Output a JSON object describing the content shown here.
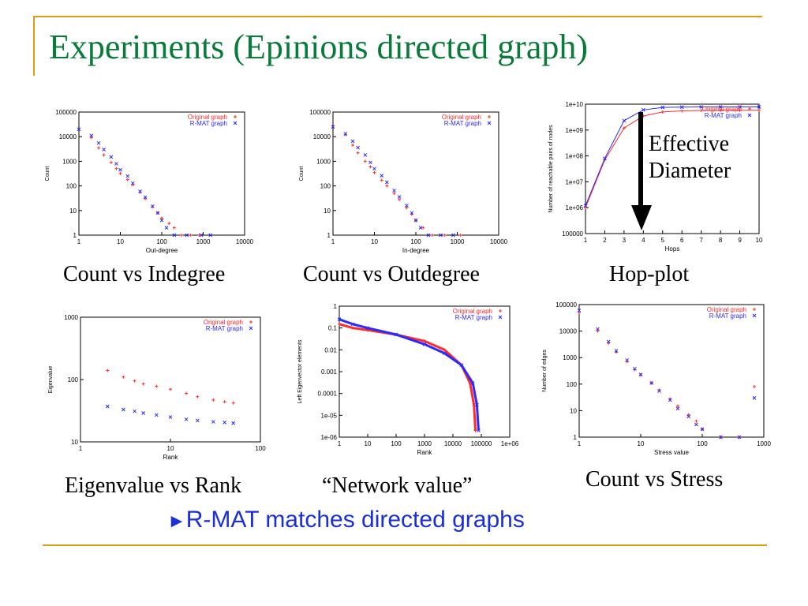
{
  "slide": {
    "title": "Experiments (Epinions directed graph)",
    "tagline_arrow": "►",
    "tagline": "R-MAT matches directed graphs",
    "annotation_line1": "Effective",
    "annotation_line2": "Diameter",
    "colors": {
      "title": "#0a7a3a",
      "accent": "#d4a017",
      "tagline": "#1a2fd6",
      "original": "#ff2a2a",
      "rmat": "#2a2aff"
    }
  },
  "chart_data": [
    {
      "id": "p1",
      "type": "scatter",
      "caption": "Count vs Indegree",
      "xlabel": "Out-degree",
      "ylabel": "Count",
      "xscale": "log",
      "yscale": "log",
      "xlim": [
        1,
        10000
      ],
      "ylim": [
        1,
        100000
      ],
      "xticks": [
        "1",
        "10",
        "100",
        "1000",
        "10000"
      ],
      "yticks": [
        "1",
        "10",
        "100",
        "1000",
        "10000",
        "100000"
      ],
      "legend_position": "top-right",
      "series": [
        {
          "name": "Original graph",
          "points": [
            [
              2,
              9000
            ],
            [
              3,
              3500
            ],
            [
              4,
              1800
            ],
            [
              6,
              900
            ],
            [
              8,
              500
            ],
            [
              10,
              320
            ],
            [
              15,
              180
            ],
            [
              20,
              110
            ],
            [
              30,
              55
            ],
            [
              40,
              30
            ],
            [
              60,
              14
            ],
            [
              80,
              8
            ],
            [
              100,
              5
            ],
            [
              150,
              3
            ],
            [
              200,
              2
            ],
            [
              300,
              1
            ],
            [
              500,
              1
            ],
            [
              800,
              1
            ]
          ]
        },
        {
          "name": "R-MAT graph",
          "points": [
            [
              1,
              20000
            ],
            [
              2,
              11000
            ],
            [
              3,
              5500
            ],
            [
              4,
              3000
            ],
            [
              6,
              1500
            ],
            [
              8,
              800
            ],
            [
              10,
              450
            ],
            [
              15,
              250
            ],
            [
              20,
              130
            ],
            [
              30,
              60
            ],
            [
              40,
              35
            ],
            [
              60,
              15
            ],
            [
              80,
              8
            ],
            [
              100,
              4
            ],
            [
              130,
              2
            ],
            [
              200,
              1
            ],
            [
              400,
              1
            ],
            [
              900,
              1
            ],
            [
              1500,
              1
            ]
          ]
        }
      ]
    },
    {
      "id": "p2",
      "type": "scatter",
      "caption": "Count vs Outdegree",
      "xlabel": "In-degree",
      "ylabel": "Count",
      "xscale": "log",
      "yscale": "log",
      "xlim": [
        1,
        10000
      ],
      "ylim": [
        1,
        100000
      ],
      "xticks": [
        "1",
        "10",
        "100",
        "1000",
        "10000"
      ],
      "yticks": [
        "1",
        "10",
        "100",
        "1000",
        "10000",
        "100000"
      ],
      "legend_position": "top-right",
      "series": [
        {
          "name": "Original graph",
          "points": [
            [
              2,
              12000
            ],
            [
              3,
              4500
            ],
            [
              4,
              2200
            ],
            [
              6,
              1000
            ],
            [
              8,
              600
            ],
            [
              10,
              350
            ],
            [
              15,
              170
            ],
            [
              20,
              100
            ],
            [
              30,
              50
            ],
            [
              40,
              28
            ],
            [
              60,
              13
            ],
            [
              80,
              7
            ],
            [
              100,
              4
            ],
            [
              150,
              2
            ],
            [
              250,
              1
            ],
            [
              500,
              1
            ],
            [
              1200,
              1
            ]
          ]
        },
        {
          "name": "R-MAT graph",
          "points": [
            [
              1,
              25000
            ],
            [
              2,
              13000
            ],
            [
              3,
              6500
            ],
            [
              4,
              3600
            ],
            [
              6,
              1800
            ],
            [
              8,
              900
            ],
            [
              10,
              500
            ],
            [
              15,
              260
            ],
            [
              20,
              140
            ],
            [
              30,
              65
            ],
            [
              40,
              36
            ],
            [
              60,
              16
            ],
            [
              80,
              8
            ],
            [
              100,
              4
            ],
            [
              130,
              2
            ],
            [
              200,
              1
            ],
            [
              400,
              1
            ],
            [
              800,
              1
            ]
          ]
        }
      ]
    },
    {
      "id": "p3",
      "type": "line",
      "caption": "Hop-plot",
      "xlabel": "Hops",
      "ylabel": "Number of reachable pairs of nodes",
      "xscale": "linear",
      "yscale": "log",
      "xlim": [
        1,
        10
      ],
      "ylim": [
        100000,
        10000000000
      ],
      "xticks": [
        "1",
        "2",
        "3",
        "4",
        "5",
        "6",
        "7",
        "8",
        "9",
        "10"
      ],
      "yticks": [
        "100000",
        "1e+06",
        "1e+07",
        "1e+08",
        "1e+09",
        "1e+10"
      ],
      "legend_position": "top-right",
      "series": [
        {
          "name": "Original graph",
          "points": [
            [
              1,
              1000000
            ],
            [
              2,
              70000000
            ],
            [
              3,
              1200000000
            ],
            [
              4,
              3500000000
            ],
            [
              5,
              5000000000
            ],
            [
              6,
              5500000000
            ],
            [
              7,
              5700000000
            ],
            [
              8,
              5800000000
            ],
            [
              9,
              5800000000
            ],
            [
              10,
              5800000000
            ]
          ]
        },
        {
          "name": "R-MAT graph",
          "points": [
            [
              1,
              1200000
            ],
            [
              2,
              80000000
            ],
            [
              3,
              2300000000
            ],
            [
              4,
              6000000000
            ],
            [
              5,
              7500000000
            ],
            [
              6,
              7700000000
            ],
            [
              7,
              7800000000
            ],
            [
              8,
              7800000000
            ],
            [
              9,
              7800000000
            ],
            [
              10,
              7800000000
            ]
          ]
        }
      ]
    },
    {
      "id": "p4",
      "type": "scatter",
      "caption": "Eigenvalue vs Rank",
      "xlabel": "Rank",
      "ylabel": "Eigenvalue",
      "xscale": "log",
      "yscale": "log",
      "xlim": [
        1,
        100
      ],
      "ylim": [
        10,
        1000
      ],
      "xticks": [
        "1",
        "10",
        "100"
      ],
      "yticks": [
        "10",
        "100",
        "1000"
      ],
      "legend_position": "top-right",
      "series": [
        {
          "name": "Original graph",
          "points": [
            [
              2,
              140
            ],
            [
              3,
              110
            ],
            [
              4,
              95
            ],
            [
              5,
              85
            ],
            [
              7,
              78
            ],
            [
              10,
              70
            ],
            [
              15,
              60
            ],
            [
              20,
              53
            ],
            [
              30,
              47
            ],
            [
              40,
              44
            ],
            [
              50,
              42
            ]
          ]
        },
        {
          "name": "R-MAT graph",
          "points": [
            [
              2,
              37
            ],
            [
              3,
              33
            ],
            [
              4,
              31
            ],
            [
              5,
              29
            ],
            [
              7,
              27
            ],
            [
              10,
              25
            ],
            [
              15,
              23
            ],
            [
              20,
              22
            ],
            [
              30,
              21
            ],
            [
              40,
              20.5
            ],
            [
              50,
              20
            ]
          ]
        }
      ]
    },
    {
      "id": "p5",
      "type": "line",
      "caption": "“Network value”",
      "xlabel": "Rank",
      "ylabel": "Left Eigenvector elements",
      "xscale": "log",
      "yscale": "log",
      "xlim": [
        1,
        1000000
      ],
      "ylim": [
        1e-06,
        1
      ],
      "xticks": [
        "1",
        "10",
        "100",
        "1000",
        "10000",
        "100000",
        "1e+06"
      ],
      "yticks": [
        "1e-06",
        "1e-05",
        "0.0001",
        "0.001",
        "0.01",
        "0.1",
        "1"
      ],
      "legend_position": "top-right",
      "series": [
        {
          "name": "Original graph",
          "points": [
            [
              1,
              0.15
            ],
            [
              3,
              0.1
            ],
            [
              10,
              0.08
            ],
            [
              100,
              0.05
            ],
            [
              1000,
              0.025
            ],
            [
              5000,
              0.01
            ],
            [
              20000,
              0.002
            ],
            [
              40000,
              0.0003
            ],
            [
              55000,
              3e-05
            ],
            [
              62000,
              2e-06
            ]
          ]
        },
        {
          "name": "R-MAT graph",
          "points": [
            [
              1,
              0.25
            ],
            [
              3,
              0.15
            ],
            [
              10,
              0.1
            ],
            [
              100,
              0.05
            ],
            [
              1000,
              0.018
            ],
            [
              5000,
              0.007
            ],
            [
              20000,
              0.002
            ],
            [
              50000,
              0.0003
            ],
            [
              70000,
              3e-05
            ],
            [
              80000,
              2e-06
            ]
          ]
        }
      ]
    },
    {
      "id": "p6",
      "type": "scatter",
      "caption": "Count vs Stress",
      "xlabel": "Stress value",
      "ylabel": "Number of edges",
      "xscale": "log",
      "yscale": "log",
      "xlim": [
        1,
        1000
      ],
      "ylim": [
        1,
        100000
      ],
      "xticks": [
        "1",
        "10",
        "100",
        "1000"
      ],
      "yticks": [
        "1",
        "10",
        "100",
        "1000",
        "10000",
        "100000"
      ],
      "legend_position": "top-right",
      "series": [
        {
          "name": "Original graph",
          "points": [
            [
              1,
              50000
            ],
            [
              2,
              10000
            ],
            [
              3,
              3500
            ],
            [
              4,
              1600
            ],
            [
              6,
              700
            ],
            [
              8,
              350
            ],
            [
              10,
              220
            ],
            [
              15,
              110
            ],
            [
              20,
              60
            ],
            [
              30,
              28
            ],
            [
              40,
              15
            ],
            [
              60,
              7
            ],
            [
              80,
              4
            ],
            [
              100,
              2
            ],
            [
              200,
              1
            ],
            [
              400,
              1
            ],
            [
              700,
              80
            ]
          ]
        },
        {
          "name": "R-MAT graph",
          "points": [
            [
              1,
              60000
            ],
            [
              2,
              12000
            ],
            [
              3,
              4000
            ],
            [
              4,
              1800
            ],
            [
              6,
              800
            ],
            [
              8,
              380
            ],
            [
              10,
              230
            ],
            [
              15,
              110
            ],
            [
              20,
              55
            ],
            [
              30,
              25
            ],
            [
              40,
              12
            ],
            [
              60,
              6
            ],
            [
              80,
              3
            ],
            [
              100,
              2
            ],
            [
              200,
              1
            ],
            [
              400,
              1
            ],
            [
              700,
              30
            ]
          ]
        }
      ]
    }
  ]
}
